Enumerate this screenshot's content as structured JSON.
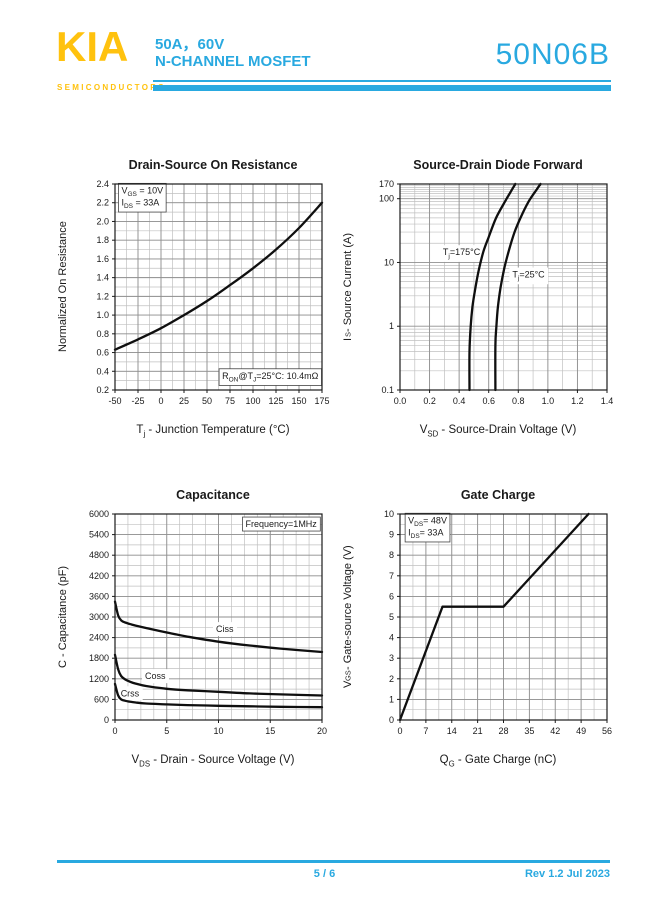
{
  "header": {
    "logo_text": "KIA",
    "logo_subtext": "SEMICONDUCTORS",
    "rating": "50A，60V",
    "device_type": "N-CHANNEL MOSFET",
    "part_number": "50N06B"
  },
  "colors": {
    "accent_cyan": "#29A9E0",
    "logo_yellow": "#FFC20E"
  },
  "footer": {
    "page_indicator": "5 / 6",
    "revision": "Rev 1.2 Jul 2023"
  },
  "chart_data": [
    {
      "type": "line",
      "title": "Drain-Source On Resistance",
      "xlabel": "T_{j} - Junction Temperature (°C)",
      "ylabel": "Normalized On Resistance",
      "xlim": [
        -50,
        175
      ],
      "ylim": [
        0.2,
        2.4
      ],
      "yscale": "linear",
      "grid": true,
      "xticks": [
        -50,
        -25,
        0,
        25,
        50,
        75,
        100,
        125,
        150,
        175
      ],
      "xtick_labels": [
        "-50",
        "-25",
        "0",
        "25",
        "50",
        "75",
        "100",
        "125",
        "150",
        "175"
      ],
      "yticks": [
        0.2,
        0.4,
        0.6,
        0.8,
        1.0,
        1.2,
        1.4,
        1.6,
        1.8,
        2.0,
        2.2,
        2.4
      ],
      "ytick_labels": [
        "0.2",
        "0.4",
        "0.6",
        "0.8",
        "1.0",
        "1.2",
        "1.4",
        "1.6",
        "1.8",
        "2.0",
        "2.2",
        "2.4"
      ],
      "xminor_step": 12.5,
      "yminor_step": 0.1,
      "series": [
        {
          "name": "normalized-rdson",
          "x": [
            -50,
            -25,
            0,
            25,
            50,
            75,
            100,
            125,
            150,
            175
          ],
          "y": [
            0.63,
            0.74,
            0.86,
            1.0,
            1.15,
            1.32,
            1.5,
            1.7,
            1.93,
            2.2
          ]
        }
      ],
      "annotations": [
        {
          "lines": [
            "V_{GS} = 10V",
            "I_{DS} = 33A"
          ],
          "x": -43,
          "y": 2.3,
          "anchor": "start",
          "box": true
        },
        {
          "lines": [
            "R_{ON}@T_{J}=25°C: 10.4mΩ"
          ],
          "x": 171,
          "y": 0.32,
          "anchor": "end",
          "box": true
        }
      ]
    },
    {
      "type": "line",
      "title": "Source-Drain Diode Forward",
      "xlabel": "V_{SD} - Source-Drain Voltage (V)",
      "ylabel": "I_{S} - Source Current (A)",
      "xlim": [
        0,
        1.4
      ],
      "ylim": [
        0.1,
        170
      ],
      "yscale": "log",
      "grid": true,
      "xticks": [
        0,
        0.2,
        0.4,
        0.6,
        0.8,
        1.0,
        1.2,
        1.4
      ],
      "xtick_labels": [
        "0.0",
        "0.2",
        "0.4",
        "0.6",
        "0.8",
        "1.0",
        "1.2",
        "1.4"
      ],
      "yticks": [
        0.1,
        1,
        10,
        100,
        170
      ],
      "ytick_labels": [
        "0.1",
        "1",
        "10",
        "100",
        "170"
      ],
      "xminor_step": 0.1,
      "yminor_values": [
        0.2,
        0.3,
        0.4,
        0.5,
        0.6,
        0.7,
        0.8,
        0.9,
        2,
        3,
        4,
        5,
        6,
        7,
        8,
        9,
        20,
        30,
        40,
        50,
        60,
        70,
        80,
        90,
        110,
        120,
        130,
        140,
        150,
        160
      ],
      "series": [
        {
          "name": "Tj=175C",
          "x": [
            0.47,
            0.47,
            0.478,
            0.49,
            0.51,
            0.535,
            0.565,
            0.6,
            0.65,
            0.71,
            0.75,
            0.78
          ],
          "y": [
            0.1,
            0.4,
            1,
            2,
            4,
            8,
            15,
            25,
            50,
            90,
            130,
            170
          ]
        },
        {
          "name": "Tj=25C",
          "x": [
            0.645,
            0.645,
            0.652,
            0.662,
            0.68,
            0.705,
            0.735,
            0.775,
            0.815,
            0.87,
            0.925,
            0.95
          ],
          "y": [
            0.1,
            0.5,
            1,
            2,
            4,
            8,
            15,
            30,
            50,
            90,
            140,
            170
          ]
        }
      ],
      "annotations": [
        {
          "lines": [
            "T_{j}=175°C"
          ],
          "x": 0.29,
          "y": 13,
          "anchor": "start",
          "box": false
        },
        {
          "lines": [
            "T_{j}=25°C"
          ],
          "x": 0.76,
          "y": 5.8,
          "anchor": "start",
          "box": false
        }
      ]
    },
    {
      "type": "line",
      "title": "Capacitance",
      "xlabel": "V_{DS} - Drain - Source Voltage (V)",
      "ylabel": "C - Capacitance (pF)",
      "xlim": [
        0,
        20
      ],
      "ylim": [
        0,
        6000
      ],
      "yscale": "linear",
      "grid": true,
      "xticks": [
        0,
        5,
        10,
        15,
        20
      ],
      "xtick_labels": [
        "0",
        "5",
        "10",
        "15",
        "20"
      ],
      "yticks": [
        0,
        600,
        1200,
        1800,
        2400,
        3000,
        3600,
        4200,
        4800,
        5400,
        6000
      ],
      "ytick_labels": [
        "0",
        "600",
        "1200",
        "1800",
        "2400",
        "3000",
        "3600",
        "4200",
        "4800",
        "5400",
        "6000"
      ],
      "xminor_step": 1.25,
      "yminor_step": 300,
      "series": [
        {
          "name": "Ciss",
          "x": [
            0,
            0.3,
            0.6,
            1,
            1.5,
            2,
            3,
            5,
            7,
            10,
            13,
            16,
            20
          ],
          "y": [
            3450,
            3050,
            2900,
            2840,
            2790,
            2750,
            2680,
            2550,
            2430,
            2280,
            2170,
            2080,
            1980
          ]
        },
        {
          "name": "Coss",
          "x": [
            0,
            0.3,
            0.6,
            1,
            1.5,
            2,
            3,
            5,
            7,
            10,
            13,
            16,
            20
          ],
          "y": [
            1900,
            1480,
            1280,
            1180,
            1110,
            1060,
            990,
            910,
            865,
            820,
            775,
            745,
            715
          ]
        },
        {
          "name": "Crss",
          "x": [
            0,
            0.3,
            0.6,
            1,
            1.5,
            2,
            3,
            5,
            7,
            10,
            13,
            16,
            20
          ],
          "y": [
            1050,
            720,
            600,
            560,
            530,
            510,
            480,
            455,
            435,
            415,
            398,
            385,
            372
          ]
        }
      ],
      "annotations": [
        {
          "lines": [
            "Frequency=1MHz"
          ],
          "x": 19.5,
          "y": 5620,
          "anchor": "end",
          "box": true
        },
        {
          "lines": [
            "Ciss"
          ],
          "x": 10.6,
          "y": 2560,
          "anchor": "middle",
          "box": false
        },
        {
          "lines": [
            "Coss"
          ],
          "x": 2.9,
          "y": 1190,
          "anchor": "start",
          "box": false
        },
        {
          "lines": [
            "Crss"
          ],
          "x": 0.55,
          "y": 690,
          "anchor": "start",
          "box": false
        }
      ]
    },
    {
      "type": "line",
      "title": "Gate Charge",
      "xlabel": "Q_{G} - Gate Charge (nC)",
      "ylabel": "V_{GS} - Gate-source Voltage (V)",
      "xlim": [
        0,
        56
      ],
      "ylim": [
        0,
        10
      ],
      "yscale": "linear",
      "grid": true,
      "smooth": false,
      "xticks": [
        0,
        7,
        14,
        21,
        28,
        35,
        42,
        49,
        56
      ],
      "xtick_labels": [
        "0",
        "7",
        "14",
        "21",
        "28",
        "35",
        "42",
        "49",
        "56"
      ],
      "yticks": [
        0,
        1,
        2,
        3,
        4,
        5,
        6,
        7,
        8,
        9,
        10
      ],
      "ytick_labels": [
        "0",
        "1",
        "2",
        "3",
        "4",
        "5",
        "6",
        "7",
        "8",
        "9",
        "10"
      ],
      "xminor_step": 3.5,
      "yminor_step": 0.5,
      "series": [
        {
          "name": "gate-charge",
          "x": [
            0,
            11.5,
            28,
            51
          ],
          "y": [
            0,
            5.5,
            5.5,
            10
          ]
        }
      ],
      "annotations": [
        {
          "lines": [
            "V_{DS}= 48V",
            "I_{DS}= 33A"
          ],
          "x": 2.2,
          "y": 9.55,
          "anchor": "start",
          "box": true
        }
      ]
    }
  ]
}
